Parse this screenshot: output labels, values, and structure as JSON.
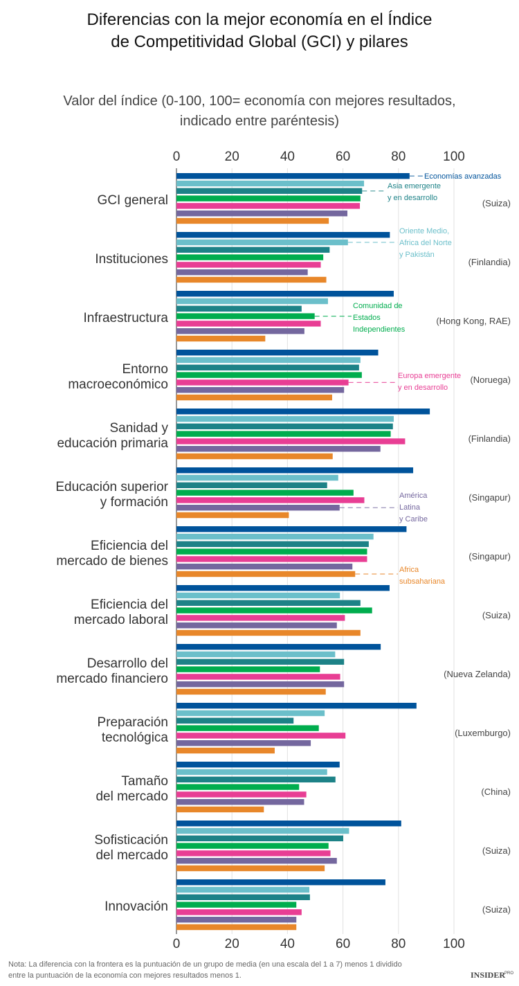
{
  "chart_data": {
    "type": "bar",
    "orientation": "horizontal",
    "title": [
      "Diferencias con la mejor economía en el Índice",
      "de Competitividad Global (GCI) y pilares"
    ],
    "subtitle": [
      "Valor del índice (0-100, 100= economía con mejores resultados,",
      "indicado entre paréntesis)"
    ],
    "xlim": [
      0,
      100
    ],
    "xticks": [
      0,
      20,
      40,
      60,
      80,
      100
    ],
    "grid": true,
    "categories": [
      [
        "GCI general"
      ],
      [
        "Instituciones"
      ],
      [
        "Infraestructura"
      ],
      [
        "Entorno",
        "macroeconómico"
      ],
      [
        "Sanidad y",
        "educación primaria"
      ],
      [
        "Educación superior",
        "y formación"
      ],
      [
        "Eficiencia del",
        "mercado de bienes"
      ],
      [
        "Eficiencia del",
        "mercado laboral"
      ],
      [
        "Desarrollo del",
        "mercado financiero"
      ],
      [
        "Preparación",
        "tecnológica"
      ],
      [
        "Tamaño",
        "del mercado"
      ],
      [
        "Sofisticación",
        "del mercado"
      ],
      [
        "Innovación"
      ]
    ],
    "best_economy": [
      "(Suiza)",
      "(Finlandia)",
      "(Hong Kong, RAE)",
      "(Noruega)",
      "(Finlandia)",
      "(Singapur)",
      "(Singapur)",
      "(Suiza)",
      "(Nueva Zelanda)",
      "(Luxemburgo)",
      "(China)",
      "(Suiza)",
      "(Suiza)"
    ],
    "series": [
      {
        "name": "Economías avanzadas",
        "label_lines": [
          "Economías avanzadas"
        ],
        "color": "#00539b",
        "values": [
          84.0,
          76.9,
          78.3,
          72.7,
          91.3,
          85.3,
          82.9,
          76.8,
          73.6,
          86.5,
          58.8,
          81.0,
          75.3
        ]
      },
      {
        "name": "Oriente Medio, Africa del Norte y Pakistán",
        "label_lines": [
          "Oriente Medio,",
          "Africa del Norte",
          "y Pakistán"
        ],
        "color": "#6bbfca",
        "values": [
          67.6,
          61.8,
          54.6,
          66.3,
          78.3,
          58.3,
          71.0,
          58.9,
          57.2,
          53.4,
          54.3,
          62.2,
          47.9
        ]
      },
      {
        "name": "Asia emergente y en desarrollo",
        "label_lines": [
          "Asia emergente",
          "y en desarrollo"
        ],
        "color": "#1d8287",
        "values": [
          66.9,
          55.2,
          45.1,
          65.8,
          78.0,
          54.3,
          69.3,
          66.3,
          60.4,
          42.2,
          57.3,
          60.1,
          48.1
        ]
      },
      {
        "name": "Comunidad de Estados Independientes",
        "label_lines": [
          "Comunidad de",
          "Estados",
          "Independientes"
        ],
        "color": "#00ad4e",
        "values": [
          66.3,
          52.9,
          49.8,
          66.8,
          77.2,
          63.8,
          68.7,
          70.5,
          51.7,
          51.3,
          44.2,
          54.8,
          43.2
        ]
      },
      {
        "name": "Europa emergente y en desarrollo",
        "label_lines": [
          "Europa emergente",
          "y en desarrollo"
        ],
        "color": "#e83e94",
        "values": [
          66.1,
          52.0,
          52.0,
          62.0,
          82.4,
          67.7,
          68.7,
          60.7,
          59.0,
          60.9,
          46.8,
          55.5,
          45.1
        ]
      },
      {
        "name": "América Latina y Caribe",
        "label_lines": [
          "América",
          "Latina",
          "y Caribe"
        ],
        "color": "#74679e",
        "values": [
          61.6,
          47.3,
          46.1,
          60.4,
          73.5,
          58.8,
          63.4,
          57.8,
          60.4,
          48.4,
          46.0,
          57.8,
          43.2
        ]
      },
      {
        "name": "Africa subsahariana",
        "label_lines": [
          "Africa",
          "subsahariana"
        ],
        "color": "#e8872a",
        "values": [
          54.9,
          54.0,
          32.0,
          56.1,
          56.3,
          40.5,
          64.4,
          66.3,
          53.8,
          35.4,
          31.5,
          53.4,
          43.2
        ]
      }
    ],
    "note": [
      "Nota: La diferencia con la frontera es la puntuación de un grupo de media (en una escala del 1 a 7) menos 1 dividido",
      "entre la puntuación de la economía con mejores resultados menos 1."
    ],
    "logo": {
      "main": "INSIDER",
      "suffix": "PRO"
    }
  }
}
